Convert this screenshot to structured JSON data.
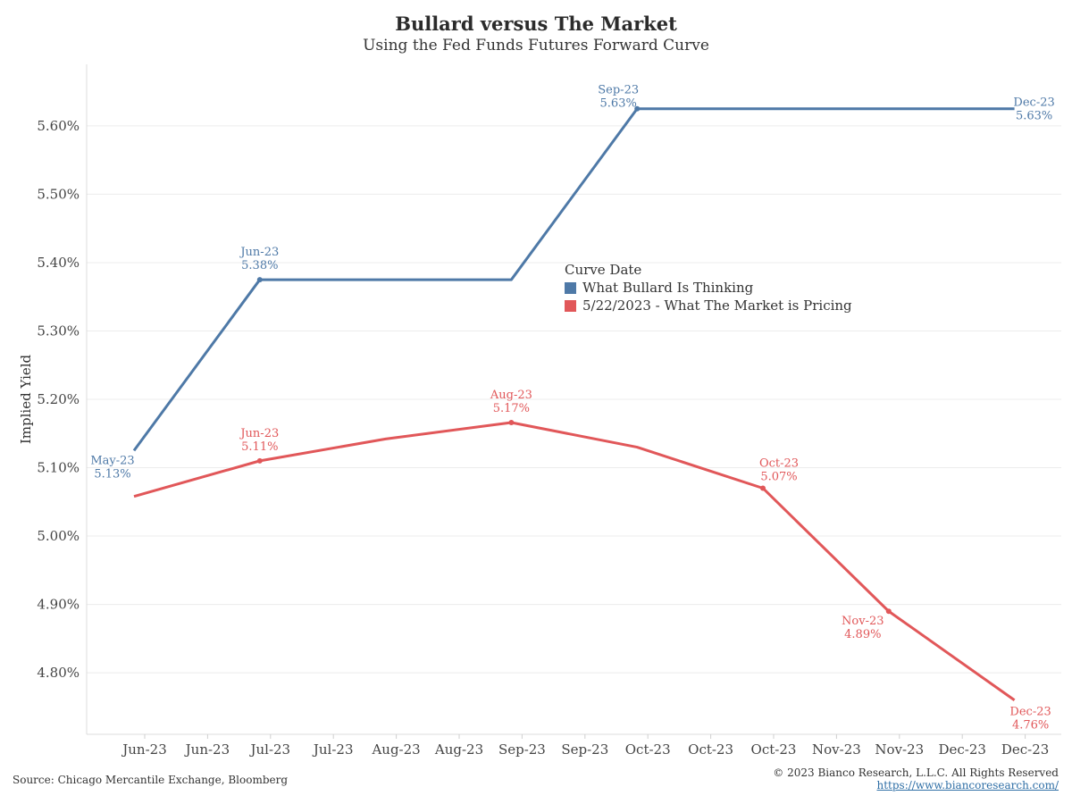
{
  "header": {
    "title": "Bullard versus The Market",
    "subtitle": "Using the Fed Funds Futures Forward Curve"
  },
  "footer": {
    "source": "Source: Chicago Mercantile Exchange, Bloomberg",
    "copyright": "© 2023 Bianco Research, L.L.C. All Rights Reserved",
    "url": "https://www.biancoresearch.com/"
  },
  "chart_data": {
    "type": "line",
    "ylabel": "Implied Yield",
    "xlabel": "",
    "ylim": [
      4.71,
      5.69
    ],
    "yticks": [
      4.8,
      4.9,
      5.0,
      5.1,
      5.2,
      5.3,
      5.4,
      5.5,
      5.6
    ],
    "ytick_labels": [
      "4.80%",
      "4.90%",
      "5.00%",
      "5.10%",
      "5.20%",
      "5.30%",
      "5.40%",
      "5.50%",
      "5.60%"
    ],
    "categories": [
      "Jun-23",
      "Jun-23",
      "Jul-23",
      "Jul-23",
      "Aug-23",
      "Aug-23",
      "Sep-23",
      "Sep-23",
      "Oct-23",
      "Oct-23",
      "Oct-23",
      "Nov-23",
      "Nov-23",
      "Dec-23",
      "Dec-23"
    ],
    "grid": true,
    "legend": {
      "title": "Curve Date",
      "position": "center-right"
    },
    "colors": {
      "bullard": "#4e79a7",
      "market": "#e15759"
    },
    "series": [
      {
        "name": "What Bullard Is Thinking",
        "color": "#4e79a7",
        "points": [
          {
            "x": 0,
            "y": 5.125
          },
          {
            "x": 2,
            "y": 5.375
          },
          {
            "x": 6,
            "y": 5.375
          },
          {
            "x": 8,
            "y": 5.625
          },
          {
            "x": 14,
            "y": 5.625
          }
        ],
        "markers": [
          1,
          3
        ],
        "labels": [
          {
            "point": 0,
            "date": "May-23",
            "value": "5.13%",
            "pos": "below"
          },
          {
            "point": 1,
            "date": "Jun-23",
            "value": "5.38%",
            "pos": "above"
          },
          {
            "point": 3,
            "date": "Sep-23",
            "value": "5.63%",
            "pos": "above-left"
          },
          {
            "point": 4,
            "date": "Dec-23",
            "value": "5.63%",
            "pos": "right"
          }
        ]
      },
      {
        "name": "5/22/2023 - What The Market is Pricing",
        "color": "#e15759",
        "points": [
          {
            "x": 0,
            "y": 5.058
          },
          {
            "x": 2,
            "y": 5.11
          },
          {
            "x": 4,
            "y": 5.142
          },
          {
            "x": 6,
            "y": 5.166
          },
          {
            "x": 8,
            "y": 5.13
          },
          {
            "x": 10,
            "y": 5.07
          },
          {
            "x": 12,
            "y": 4.89
          },
          {
            "x": 14,
            "y": 4.76
          }
        ],
        "markers": [
          1,
          3,
          5,
          6
        ],
        "labels": [
          {
            "point": 1,
            "date": "Jun-23",
            "value": "5.11%",
            "pos": "above"
          },
          {
            "point": 3,
            "date": "Aug-23",
            "value": "5.17%",
            "pos": "above"
          },
          {
            "point": 5,
            "date": "Oct-23",
            "value": "5.07%",
            "pos": "above-right"
          },
          {
            "point": 6,
            "date": "Nov-23",
            "value": "4.89%",
            "pos": "below-left"
          },
          {
            "point": 7,
            "date": "Dec-23",
            "value": "4.76%",
            "pos": "below-right"
          }
        ]
      }
    ]
  }
}
